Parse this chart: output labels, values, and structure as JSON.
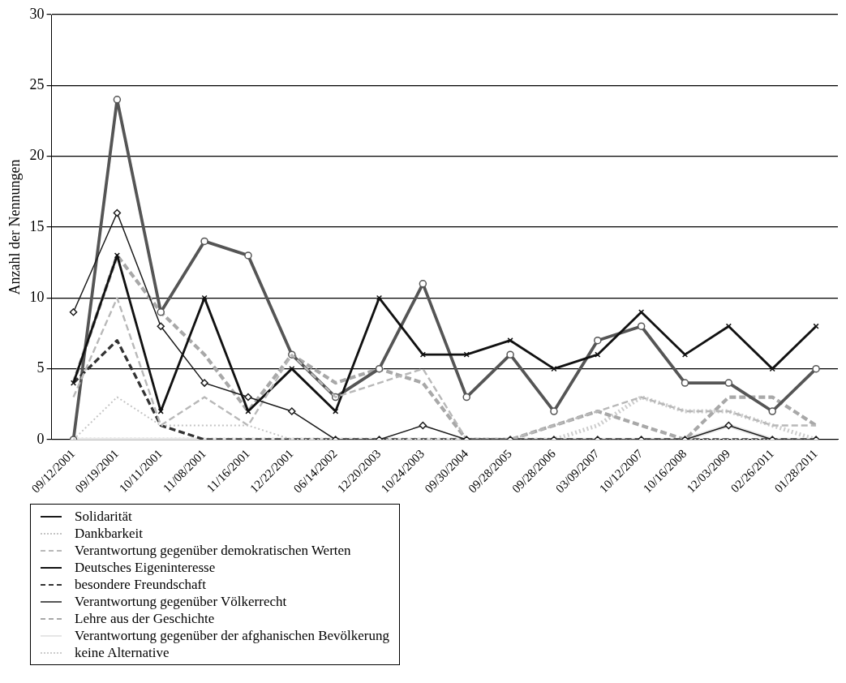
{
  "chart_data": {
    "type": "line",
    "categories": [
      "09/12/2001",
      "09/19/2001",
      "10/11/2001",
      "11/08/2001",
      "11/16/2001",
      "12/22/2001",
      "06/14/2002",
      "12/20/2003",
      "10/24/2003",
      "09/30/2004",
      "09/28/2005",
      "09/28/2006",
      "03/09/2007",
      "10/12/2007",
      "10/16/2008",
      "12/03/2009",
      "02/26/2011",
      "01/28/2011"
    ],
    "ylabel": "Anzahl der Nennungen",
    "ylim": [
      0,
      30
    ],
    "yticks": [
      0,
      5,
      10,
      15,
      20,
      25,
      30
    ],
    "grid": "y",
    "legend": "bottom left",
    "series": [
      {
        "name": "Solidarität",
        "color": "#1a1a1a",
        "marker": "diamond",
        "line_style": "solid",
        "values": [
          9,
          16,
          8,
          4,
          3,
          2,
          0,
          0,
          1,
          0,
          0,
          0,
          0,
          0,
          0,
          1,
          0,
          0
        ]
      },
      {
        "name": "Dankbarkeit",
        "color": "#c4c4c4",
        "marker": "none",
        "line_style": "dotted",
        "values": [
          0,
          3,
          1,
          1,
          1,
          0,
          0,
          0,
          0,
          0,
          0,
          0,
          0,
          0,
          0,
          0,
          0,
          0
        ]
      },
      {
        "name": "Verantwortung gegenüber demokratischen Werten",
        "color": "#b8b8b8",
        "marker": "none",
        "line_style": "dashed",
        "values": [
          3,
          10,
          1,
          3,
          1,
          6,
          3,
          4,
          5,
          0,
          0,
          1,
          2,
          3,
          2,
          2,
          1,
          1
        ]
      },
      {
        "name": "Deutsches Eigeninteresse",
        "color": "#111111",
        "marker": "cross",
        "line_style": "solid",
        "values": [
          4,
          13,
          2,
          10,
          2,
          5,
          2,
          10,
          6,
          6,
          7,
          5,
          6,
          9,
          6,
          8,
          5,
          8
        ]
      },
      {
        "name": "besondere Freundschaft",
        "color": "#333333",
        "marker": "none",
        "line_style": "dashed",
        "values": [
          4,
          7,
          1,
          0,
          0,
          0,
          0,
          0,
          0,
          0,
          0,
          0,
          0,
          0,
          0,
          0,
          0,
          0
        ]
      },
      {
        "name": "Verantwortung gegenüber Völkerrecht",
        "color": "#555555",
        "marker": "circle",
        "line_style": "solid",
        "values": [
          0,
          24,
          9,
          14,
          13,
          6,
          3,
          5,
          11,
          3,
          6,
          2,
          7,
          8,
          4,
          4,
          2,
          5
        ]
      },
      {
        "name": "Lehre aus der Geschichte",
        "color": "#a8a8a8",
        "marker": "none",
        "line_style": "dashed",
        "values": [
          4,
          13,
          9,
          6,
          2,
          6,
          4,
          5,
          4,
          0,
          0,
          1,
          2,
          1,
          0,
          3,
          3,
          1
        ]
      },
      {
        "name": "Verantwortung gegenüber der afghanischen Bevölkerung",
        "color": "#e6e6e6",
        "marker": "none",
        "line_style": "solid",
        "values": [
          0,
          0,
          0,
          0,
          0,
          0,
          0,
          0,
          0,
          0,
          0,
          0,
          0,
          0,
          0,
          1,
          0,
          0
        ]
      },
      {
        "name": "keine Alternative",
        "color": "#cccccc",
        "marker": "none",
        "line_style": "dotted",
        "values": [
          0,
          0,
          0,
          0,
          0,
          0,
          0,
          0,
          0,
          0,
          0,
          0,
          1,
          3,
          2,
          2,
          1,
          0
        ]
      }
    ]
  }
}
